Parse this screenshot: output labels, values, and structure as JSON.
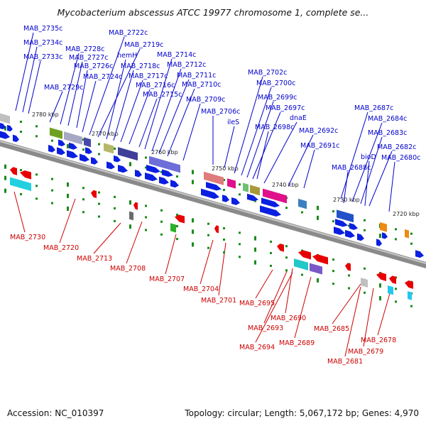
{
  "title": "Mycobacterium abscessus ATCC 19977 chromosome 1, complete se...",
  "footer": {
    "accession": "Accession: NC_010397",
    "topology": "Topology: circular; Length: 5,067,172 bp; Genes: 4,970"
  },
  "colors": {
    "top_labels": "#0000cc",
    "bottom_labels": "#cc0000",
    "forward_features": "#0000ee",
    "reverse_features": "#ee0000",
    "backbone": "#808080",
    "ticks": "#1a8a1a"
  },
  "scale_labels": [
    "2780 kbp",
    "2770 kbp",
    "2760 kbp",
    "2750 kbp",
    "2740 kbp",
    "2730 kbp",
    "2720 kbp"
  ],
  "top_genes": [
    "MAB_2735c",
    "MAB_2734c",
    "MAB_2733c",
    "MAB_2728c",
    "MAB_2727c",
    "MAB_2726c",
    "MAB_2729c",
    "MAB_2724c",
    "MAB_2722c",
    "MAB_2719c",
    "hemH",
    "MAB_2718c",
    "MAB_2717c",
    "MAB_2716c",
    "MAB_2715c",
    "MAB_2714c",
    "MAB_2712c",
    "MAB_2711c",
    "MAB_2710c",
    "MAB_2709c",
    "MAB_2706c",
    "ileS",
    "MAB_2702c",
    "MAB_2700c",
    "MAB_2699c",
    "MAB_2697c",
    "dnaE",
    "MAB_2698c",
    "MAB_2692c",
    "MAB_2691c",
    "MAB_2687c",
    "MAB_2684c",
    "MAB_2683c",
    "MAB_2682c",
    "bioD",
    "MAB_2680c",
    "MAB_2688c"
  ],
  "bottom_genes": [
    "MAB_2730",
    "MAB_2720",
    "MAB_2713",
    "MAB_2708",
    "MAB_2707",
    "MAB_2704",
    "MAB_2701",
    "MAB_2695",
    "MAB_2690",
    "MAB_2693",
    "MAB_2694",
    "MAB_2689",
    "MAB_2685",
    "MAB_2681",
    "MAB_2679",
    "MAB_2678"
  ]
}
